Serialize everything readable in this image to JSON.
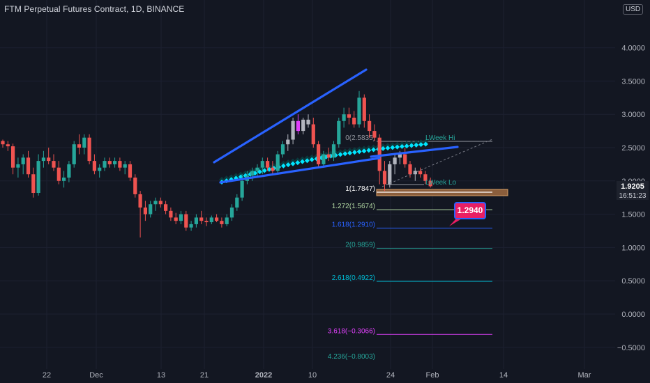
{
  "header": {
    "title": "FTM Perpetual Futures Contract, 1D, BINANCE",
    "currency_button": "USD"
  },
  "price_axis": {
    "labels": [
      "4.0000",
      "3.5000",
      "3.0000",
      "2.5000",
      "2.0000",
      "1.5000",
      "1.0000",
      "0.5000",
      "0.0000",
      "−0.5000"
    ],
    "values": [
      4.0,
      3.5,
      3.0,
      2.5,
      2.0,
      1.5,
      1.0,
      0.5,
      0.0,
      -0.5
    ],
    "last_price": "1.9205",
    "countdown": "16:51:23"
  },
  "time_axis": {
    "labels": [
      "22",
      "Dec",
      "13",
      "21",
      "2022",
      "10",
      "24",
      "Feb",
      "14",
      "Mar"
    ]
  },
  "annotations": {
    "last_week_high": "LWeek Hi",
    "last_week_low": "LWeek Lo",
    "callout": "1.2940"
  },
  "fib_levels": [
    {
      "label": "0(2.5835)",
      "value": 2.5835,
      "color": "#9598a1"
    },
    {
      "label": "1(1.7847)",
      "value": 1.7847,
      "color": "#ffffff"
    },
    {
      "label": "1.272(1.5674)",
      "value": 1.5674,
      "color": "#b2d8a3"
    },
    {
      "label": "1.618(1.2910)",
      "value": 1.291,
      "color": "#2962ff"
    },
    {
      "label": "2(0.9859)",
      "value": 0.9859,
      "color": "#26a69a"
    },
    {
      "label": "2.618(0.4922)",
      "value": 0.4922,
      "color": "#00bcd4"
    },
    {
      "label": "3.618(−0.3066)",
      "value": -0.3066,
      "color": "#e040fb"
    },
    {
      "label": "4.236(−0.8003)",
      "value": -0.8003,
      "color": "#26a69a"
    }
  ],
  "colors": {
    "up": "#26a69a",
    "down": "#ef5350",
    "neutral": "#b2b5be",
    "wedge": "#2962ff",
    "ribbon": "#00e5ff",
    "background": "#131722"
  },
  "chart_data": {
    "type": "candlestick",
    "ylim": [
      -0.6,
      4.3
    ],
    "candles": [
      [
        2.6,
        2.62,
        2.5,
        2.55
      ],
      [
        2.55,
        2.6,
        2.45,
        2.52
      ],
      [
        2.52,
        2.56,
        2.1,
        2.2
      ],
      [
        2.2,
        2.35,
        2.05,
        2.25
      ],
      [
        2.25,
        2.4,
        2.1,
        2.35
      ],
      [
        2.35,
        2.45,
        2.05,
        2.1
      ],
      [
        2.1,
        2.2,
        1.75,
        1.82
      ],
      [
        1.82,
        2.4,
        1.78,
        2.3
      ],
      [
        2.3,
        2.45,
        2.2,
        2.35
      ],
      [
        2.35,
        2.5,
        2.25,
        2.3
      ],
      [
        2.3,
        2.4,
        2.15,
        2.2
      ],
      [
        2.2,
        2.3,
        1.95,
        2.0
      ],
      [
        2.0,
        2.15,
        1.9,
        2.05
      ],
      [
        2.05,
        2.3,
        1.98,
        2.25
      ],
      [
        2.25,
        2.6,
        2.2,
        2.55
      ],
      [
        2.55,
        2.7,
        2.4,
        2.5
      ],
      [
        2.5,
        2.7,
        2.4,
        2.65
      ],
      [
        2.65,
        2.7,
        2.25,
        2.3
      ],
      [
        2.3,
        2.4,
        2.1,
        2.15
      ],
      [
        2.15,
        2.25,
        2.05,
        2.2
      ],
      [
        2.2,
        2.35,
        2.15,
        2.3
      ],
      [
        2.3,
        2.35,
        2.2,
        2.25
      ],
      [
        2.25,
        2.35,
        2.2,
        2.3
      ],
      [
        2.3,
        2.35,
        2.15,
        2.2
      ],
      [
        2.2,
        2.3,
        2.1,
        2.25
      ],
      [
        2.25,
        2.3,
        2.0,
        2.05
      ],
      [
        2.05,
        2.1,
        1.75,
        1.8
      ],
      [
        1.8,
        1.85,
        1.15,
        1.6
      ],
      [
        1.6,
        1.7,
        1.4,
        1.5
      ],
      [
        1.5,
        1.7,
        1.45,
        1.65
      ],
      [
        1.65,
        1.75,
        1.55,
        1.7
      ],
      [
        1.7,
        1.75,
        1.6,
        1.65
      ],
      [
        1.65,
        1.7,
        1.5,
        1.55
      ],
      [
        1.55,
        1.6,
        1.4,
        1.45
      ],
      [
        1.45,
        1.52,
        1.35,
        1.4
      ],
      [
        1.4,
        1.55,
        1.35,
        1.5
      ],
      [
        1.5,
        1.55,
        1.25,
        1.3
      ],
      [
        1.3,
        1.4,
        1.25,
        1.35
      ],
      [
        1.35,
        1.5,
        1.3,
        1.45
      ],
      [
        1.45,
        1.55,
        1.35,
        1.4
      ],
      [
        1.4,
        1.45,
        1.32,
        1.38
      ],
      [
        1.38,
        1.48,
        1.35,
        1.45
      ],
      [
        1.45,
        1.5,
        1.38,
        1.4
      ],
      [
        1.4,
        1.45,
        1.3,
        1.35
      ],
      [
        1.35,
        1.5,
        1.32,
        1.45
      ],
      [
        1.45,
        1.65,
        1.4,
        1.6
      ],
      [
        1.6,
        1.8,
        1.55,
        1.75
      ],
      [
        1.75,
        2.1,
        1.7,
        2.0
      ],
      [
        2.0,
        2.15,
        1.95,
        2.08
      ],
      [
        2.08,
        2.2,
        2.0,
        2.15
      ],
      [
        2.15,
        2.25,
        2.05,
        2.2
      ],
      [
        2.2,
        2.35,
        2.1,
        2.3
      ],
      [
        2.3,
        2.35,
        2.15,
        2.2
      ],
      [
        2.2,
        2.3,
        2.1,
        2.15
      ],
      [
        2.15,
        2.45,
        2.1,
        2.4
      ],
      [
        2.4,
        2.6,
        2.35,
        2.55
      ],
      [
        2.55,
        2.7,
        2.45,
        2.62
      ],
      [
        2.62,
        2.95,
        2.55,
        2.9
      ],
      [
        2.9,
        3.0,
        2.7,
        2.75
      ],
      [
        2.75,
        2.95,
        2.7,
        2.92
      ],
      [
        2.92,
        3.0,
        2.8,
        2.85
      ],
      [
        2.85,
        2.95,
        2.5,
        2.55
      ],
      [
        2.55,
        2.6,
        2.2,
        2.25
      ],
      [
        2.25,
        2.45,
        2.2,
        2.4
      ],
      [
        2.4,
        2.5,
        2.3,
        2.35
      ],
      [
        2.35,
        2.6,
        2.3,
        2.55
      ],
      [
        2.55,
        2.95,
        2.5,
        2.9
      ],
      [
        2.9,
        3.1,
        2.8,
        3.0
      ],
      [
        3.0,
        3.1,
        2.85,
        2.95
      ],
      [
        2.95,
        3.05,
        2.8,
        2.85
      ],
      [
        2.85,
        3.35,
        2.8,
        3.25
      ],
      [
        3.25,
        3.3,
        2.8,
        2.9
      ],
      [
        2.9,
        3.0,
        2.65,
        2.75
      ],
      [
        2.75,
        2.85,
        2.6,
        2.65
      ],
      [
        2.65,
        2.7,
        1.95,
        2.15
      ],
      [
        2.15,
        2.3,
        1.85,
        1.95
      ],
      [
        1.95,
        2.3,
        1.9,
        2.25
      ],
      [
        2.25,
        2.4,
        2.1,
        2.35
      ],
      [
        2.35,
        2.45,
        2.25,
        2.4
      ],
      [
        2.4,
        2.5,
        2.2,
        2.25
      ],
      [
        2.25,
        2.3,
        2.05,
        2.1
      ],
      [
        2.1,
        2.2,
        2.0,
        2.15
      ],
      [
        2.15,
        2.2,
        2.05,
        2.1
      ],
      [
        2.1,
        2.15,
        1.95,
        2.0
      ],
      [
        2.0,
        2.05,
        1.9,
        1.9205
      ]
    ],
    "wedge_upper": [
      [
        307,
        233
      ],
      [
        525,
        100
      ]
    ],
    "wedge_lower": [
      [
        316,
        262
      ],
      [
        544,
        227
      ]
    ],
    "wedge_upper2": [
      [
        532,
        225
      ],
      [
        656,
        211
      ]
    ]
  }
}
